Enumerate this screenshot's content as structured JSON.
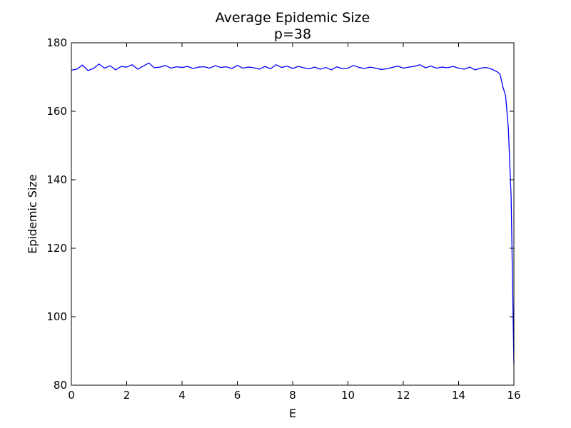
{
  "chart_data": {
    "type": "line",
    "title": "Average Epidemic Size",
    "subtitle": "p=38",
    "xlabel": "E",
    "ylabel": "Epidemic Size",
    "xlim": [
      0,
      16
    ],
    "ylim": [
      80,
      180
    ],
    "xticks": [
      0,
      2,
      4,
      6,
      8,
      10,
      12,
      14,
      16
    ],
    "yticks": [
      80,
      100,
      120,
      140,
      160,
      180
    ],
    "grid": false,
    "series": [
      {
        "color": "#0000ff",
        "x": [
          0.0,
          0.2,
          0.4,
          0.6,
          0.8,
          1.0,
          1.2,
          1.4,
          1.6,
          1.8,
          2.0,
          2.2,
          2.4,
          2.6,
          2.8,
          3.0,
          3.2,
          3.4,
          3.6,
          3.8,
          4.0,
          4.2,
          4.4,
          4.6,
          4.8,
          5.0,
          5.2,
          5.4,
          5.6,
          5.8,
          6.0,
          6.2,
          6.4,
          6.6,
          6.8,
          7.0,
          7.2,
          7.4,
          7.6,
          7.8,
          8.0,
          8.2,
          8.4,
          8.6,
          8.8,
          9.0,
          9.2,
          9.4,
          9.6,
          9.8,
          10.0,
          10.2,
          10.4,
          10.6,
          10.8,
          11.0,
          11.2,
          11.4,
          11.6,
          11.8,
          12.0,
          12.2,
          12.4,
          12.6,
          12.8,
          13.0,
          13.2,
          13.4,
          13.6,
          13.8,
          14.0,
          14.2,
          14.4,
          14.6,
          14.8,
          15.0,
          15.2,
          15.4,
          15.5,
          15.6,
          15.7,
          15.8,
          15.9,
          16.0
        ],
        "y": [
          172.0,
          172.3,
          173.5,
          171.9,
          172.5,
          173.8,
          172.6,
          173.3,
          172.1,
          173.1,
          172.9,
          173.6,
          172.3,
          173.2,
          174.1,
          172.7,
          172.9,
          173.4,
          172.6,
          173.0,
          172.8,
          173.1,
          172.5,
          172.9,
          173.0,
          172.6,
          173.3,
          172.8,
          173.0,
          172.5,
          173.4,
          172.6,
          172.9,
          172.7,
          172.3,
          173.1,
          172.4,
          173.6,
          172.8,
          173.2,
          172.5,
          173.1,
          172.7,
          172.4,
          172.9,
          172.3,
          172.8,
          172.1,
          173.0,
          172.4,
          172.6,
          173.4,
          172.8,
          172.5,
          172.9,
          172.6,
          172.2,
          172.4,
          172.8,
          173.2,
          172.6,
          172.9,
          173.1,
          173.6,
          172.7,
          173.2,
          172.6,
          172.9,
          172.7,
          173.1,
          172.6,
          172.3,
          172.9,
          172.1,
          172.6,
          172.8,
          172.3,
          171.5,
          170.8,
          167.2,
          164.5,
          155.0,
          135.0,
          86.0
        ]
      }
    ]
  }
}
